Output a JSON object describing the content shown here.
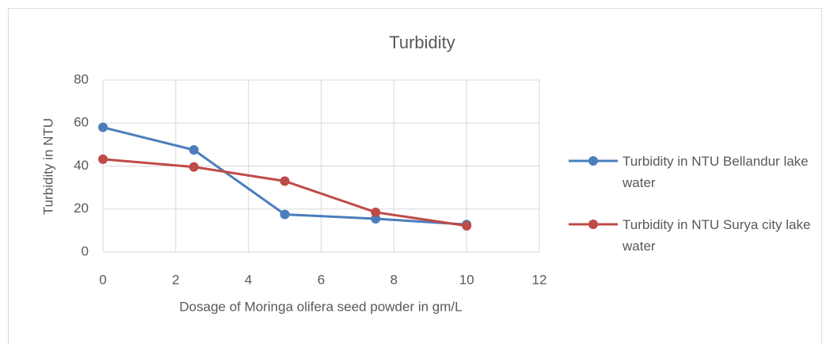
{
  "chart_data": {
    "type": "line",
    "title": "Turbidity",
    "x_label": "Dosage of Moringa olifera seed powder in gm/L",
    "y_label": "Turbidity in NTU",
    "x": [
      0,
      2.5,
      5,
      7.5,
      10
    ],
    "series": [
      {
        "name": "Turbidity in NTU Bellandur lake water",
        "color": "#4a7ebb",
        "values": [
          58,
          47.5,
          17.5,
          15.5,
          12.8
        ]
      },
      {
        "name": "Turbidity in NTU Surya city lake water",
        "color": "#be4b48",
        "values": [
          43.2,
          39.6,
          33,
          18.5,
          12.2
        ]
      }
    ],
    "xlim": [
      0,
      12
    ],
    "xticks": [
      0,
      2,
      4,
      6,
      8,
      10,
      12
    ],
    "ylim": [
      0,
      80
    ],
    "yticks": [
      0,
      20,
      40,
      60,
      80
    ],
    "grid": true,
    "legend": "right"
  }
}
